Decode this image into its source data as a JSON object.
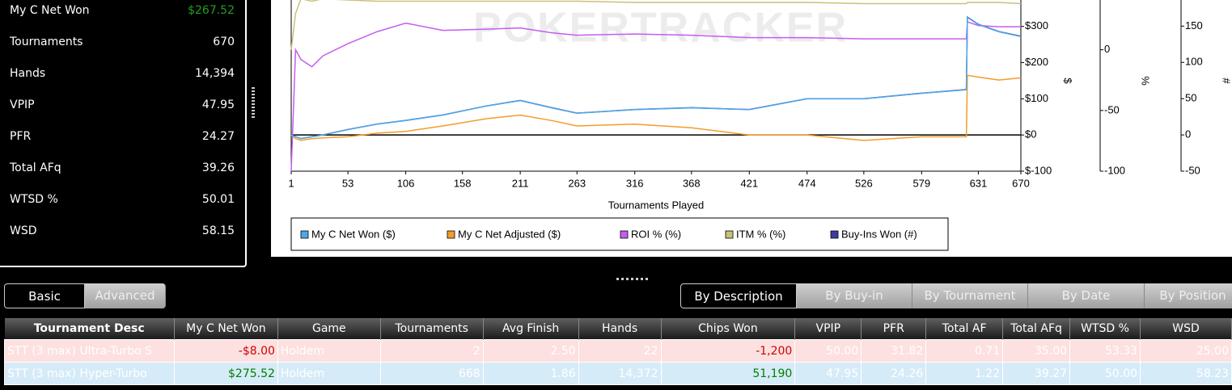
{
  "stats": {
    "rows": [
      {
        "label": "My C Net Won",
        "value": "$267.52"
      },
      {
        "label": "Tournaments",
        "value": "670"
      },
      {
        "label": "Hands",
        "value": "14,394"
      },
      {
        "label": "VPIP",
        "value": "47.95"
      },
      {
        "label": "PFR",
        "value": "24.27"
      },
      {
        "label": "Total AFq",
        "value": "39.26"
      },
      {
        "label": "WTSD %",
        "value": "50.01"
      },
      {
        "label": "WSD",
        "value": "58.15"
      }
    ]
  },
  "chart_data": {
    "type": "line",
    "watermark": "POKERTRACKER",
    "x_label": "Tournaments Played",
    "y_label": "$",
    "y2_label": "%",
    "y3_label": "#",
    "x": [
      1,
      5,
      10,
      20,
      30,
      53,
      80,
      106,
      140,
      180,
      211,
      240,
      263,
      316,
      368,
      421,
      474,
      526,
      579,
      620,
      621,
      631,
      650,
      670
    ],
    "xlim": [
      1,
      670
    ],
    "xticks": [
      1,
      53,
      106,
      158,
      211,
      263,
      316,
      368,
      421,
      474,
      526,
      579,
      631,
      670
    ],
    "ylim": [
      -100,
      373
    ],
    "yticks": [
      {
        "value": -100,
        "label": "$-100"
      },
      {
        "value": 0,
        "label": "$0"
      },
      {
        "value": 100,
        "label": "$100"
      },
      {
        "value": 200,
        "label": "$200"
      },
      {
        "value": 300,
        "label": "$300"
      }
    ],
    "y2lim": [
      -100,
      41
    ],
    "y2ticks": [
      -100,
      -50,
      0
    ],
    "y3lim": [
      -50,
      186
    ],
    "y3ticks": [
      -50,
      0,
      50,
      100,
      150
    ],
    "series": [
      {
        "name": "My C Net Won ($)",
        "color": "#4fa8e8",
        "axis": "y",
        "values": [
          0,
          -5,
          -10,
          -5,
          0,
          15,
          30,
          40,
          55,
          80,
          95,
          75,
          60,
          70,
          75,
          70,
          100,
          100,
          115,
          125,
          325,
          305,
          285,
          272
        ]
      },
      {
        "name": "My C Net Adjusted ($)",
        "color": "#f39c2a",
        "axis": "y",
        "values": [
          0,
          -10,
          -15,
          -10,
          -8,
          -5,
          5,
          10,
          25,
          45,
          55,
          40,
          25,
          30,
          20,
          0,
          0,
          -15,
          -5,
          -5,
          165,
          160,
          152,
          158
        ]
      },
      {
        "name": "ROI % (%)",
        "color": "#c65cf0",
        "axis": "y2",
        "values": [
          -100,
          0,
          -8,
          -14,
          -5,
          5,
          15,
          22,
          16,
          17,
          18,
          14,
          12,
          13,
          12,
          10,
          10,
          9,
          9,
          9,
          23,
          20,
          19,
          19
        ]
      },
      {
        "name": "ITM % (%)",
        "color": "#c8c27a",
        "axis": "y2",
        "values": [
          0,
          30,
          42,
          40,
          42,
          41,
          40,
          40,
          40,
          40,
          40,
          40,
          40,
          39,
          39,
          39,
          39,
          38,
          38,
          38,
          39,
          39,
          39,
          38
        ]
      },
      {
        "name": "Buy-Ins Won (#)",
        "color": "#3c3ca0",
        "axis": "y3",
        "values": [
          0,
          -2.5,
          -5,
          -2.5,
          0,
          7.5,
          15,
          20,
          27.5,
          40,
          47.5,
          37.5,
          30,
          35,
          37.5,
          35,
          50,
          50,
          57.5,
          62.5,
          162.5,
          152.5,
          142.5,
          136
        ]
      }
    ]
  },
  "view_tabs": [
    "Basic",
    "Advanced"
  ],
  "group_tabs": [
    "By Description",
    "By Buy-in",
    "By Tournament",
    "By Date",
    "By Position"
  ],
  "table": {
    "columns": [
      "Tournament Desc",
      "My C Net Won",
      "Game",
      "Tournaments",
      "Avg Finish",
      "Hands",
      "Chips Won",
      "VPIP",
      "PFR",
      "Total AF",
      "Total AFq",
      "WTSD %",
      "WSD"
    ],
    "rows": [
      [
        "STT (3 max) Ultra-Turbo S",
        "-$8.00",
        "Holdem",
        "2",
        "2.50",
        "22",
        "-1,200",
        "50.00",
        "31.82",
        "0.71",
        "35.00",
        "53.33",
        "25.00"
      ],
      [
        "STT (3 max) Hyper-Turbo",
        "$275.52",
        "Holdem",
        "668",
        "1.86",
        "14,372",
        "51,190",
        "47.95",
        "24.26",
        "1.22",
        "39.27",
        "50.00",
        "58.23"
      ]
    ]
  }
}
